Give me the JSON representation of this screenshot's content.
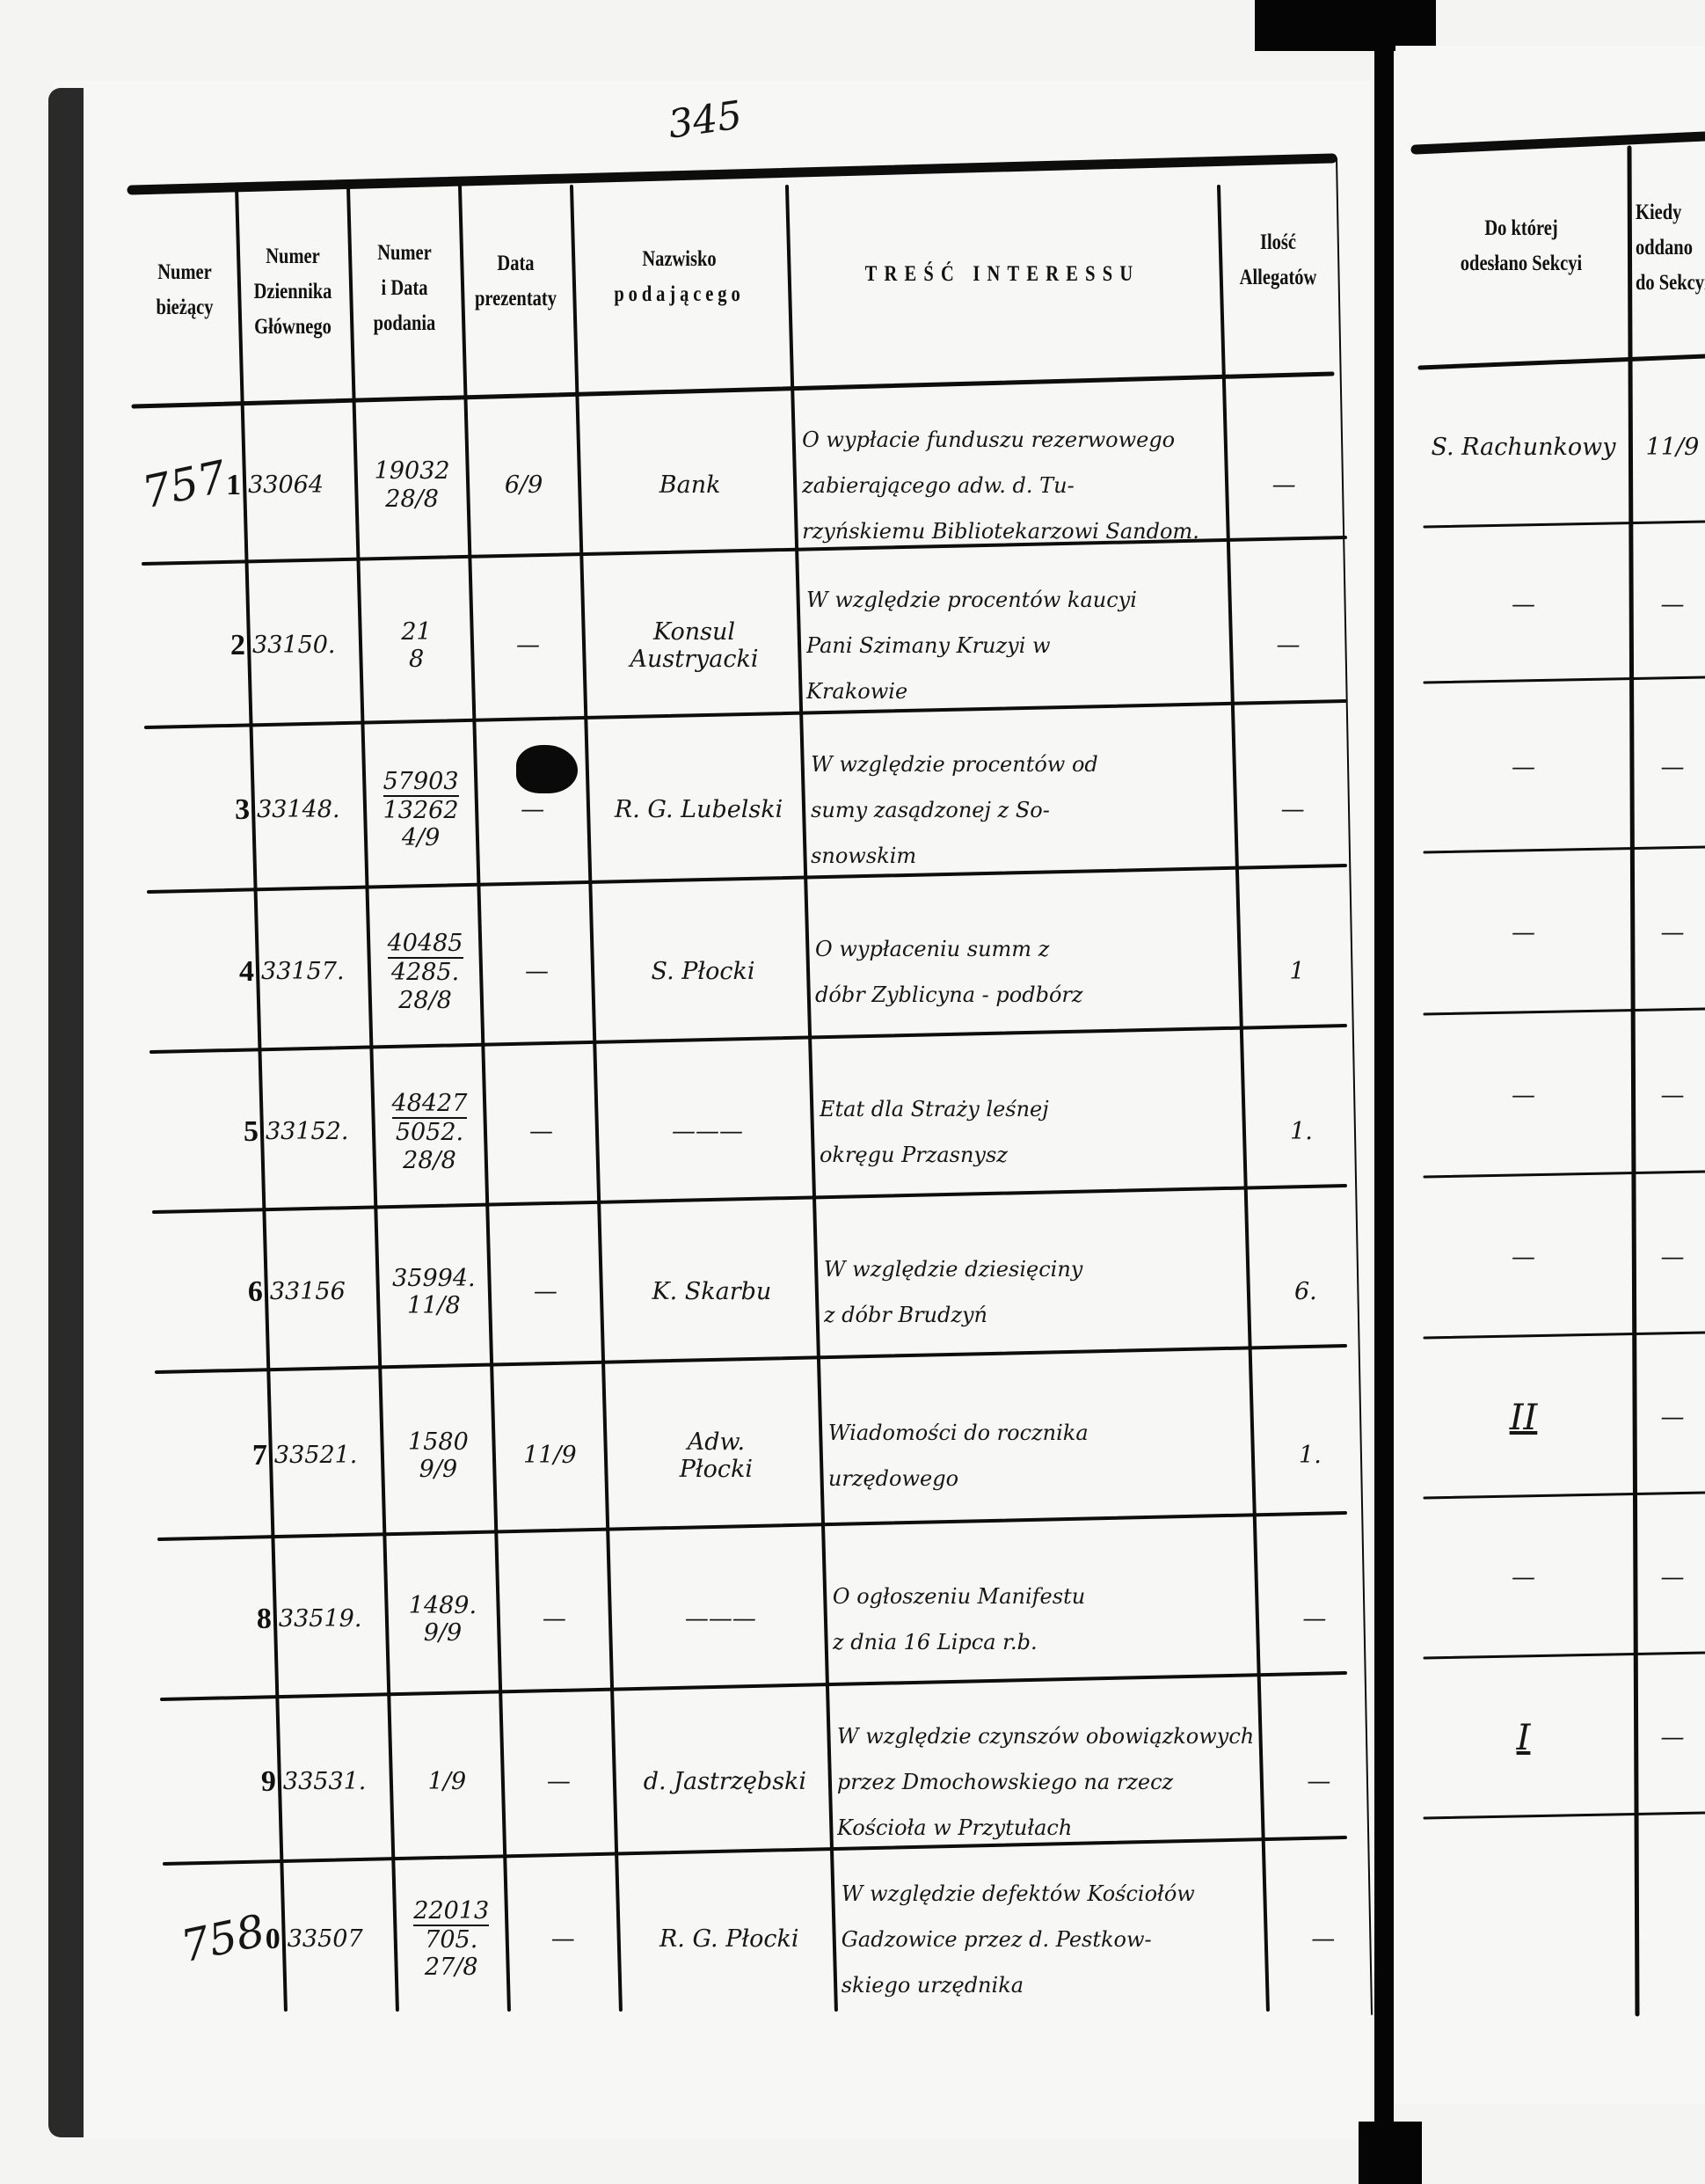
{
  "page_number": "345",
  "left_page": {
    "headers": {
      "numer_biezacy": [
        "Numer",
        "bieżący"
      ],
      "numer_dziennika": [
        "Numer",
        "Dziennika",
        "Głównego"
      ],
      "numer_i_data": [
        "Numer",
        "i Data",
        "podania"
      ],
      "data_prezentaty": [
        "Data",
        "prezentaty"
      ],
      "nazwisko": [
        "Nazwisko",
        "podającego"
      ],
      "tresc": [
        "TREŚĆ INTERESSU"
      ],
      "ilosc": [
        "Ilość",
        "Allegatów"
      ]
    },
    "rows": [
      {
        "handwritten_prefix": "757",
        "num": "1",
        "dziennik": "33064",
        "numer_data": [
          "19032",
          "28/8"
        ],
        "prezentaty": "6/9",
        "nazwisko": [
          "Bank"
        ],
        "tresc": [
          "O wypłacie funduszu rezerwowego",
          "zabierającego adw. d. Tu-",
          "rzyńskiemu Bibliotekarzowi Sandom."
        ],
        "ilosc": "—"
      },
      {
        "handwritten_prefix": "",
        "num": "2",
        "dziennik": "33150.",
        "numer_data": [
          "21",
          "8"
        ],
        "prezentaty": "—",
        "nazwisko": [
          "Konsul",
          "Austryacki"
        ],
        "tresc": [
          "W względzie procentów kaucyi",
          "Pani Szimany Kruzyi w",
          "Krakowie"
        ],
        "ilosc": "—"
      },
      {
        "handwritten_prefix": "",
        "num": "3",
        "dziennik": "33148.",
        "numer_data": [
          "57903",
          "13262",
          "4/9"
        ],
        "prezentaty": "—",
        "nazwisko": [
          "R. G. Lubelski"
        ],
        "tresc": [
          "W względzie procentów od",
          "sumy zasądzonej z So-",
          "snowskim"
        ],
        "ilosc": "—"
      },
      {
        "handwritten_prefix": "",
        "num": "4",
        "dziennik": "33157.",
        "numer_data": [
          "40485",
          "4285.",
          "28/8"
        ],
        "prezentaty": "—",
        "nazwisko": [
          "S. Płocki"
        ],
        "tresc": [
          "O wypłaceniu summ z",
          "dóbr Zyblicyna - podbórz"
        ],
        "ilosc": "1"
      },
      {
        "handwritten_prefix": "",
        "num": "5",
        "dziennik": "33152.",
        "numer_data": [
          "48427",
          "5052.",
          "28/8"
        ],
        "prezentaty": "—",
        "nazwisko": [
          "———"
        ],
        "tresc": [
          "Etat dla Straży leśnej",
          "okręgu Przasnysz"
        ],
        "ilosc": "1."
      },
      {
        "handwritten_prefix": "",
        "num": "6",
        "dziennik": "33156",
        "numer_data": [
          "35994.",
          "11/8"
        ],
        "prezentaty": "—",
        "nazwisko": [
          "K. Skarbu"
        ],
        "tresc": [
          "W względzie dziesięciny",
          "z dóbr Brudzyń"
        ],
        "ilosc": "6."
      },
      {
        "handwritten_prefix": "",
        "num": "7",
        "dziennik": "33521.",
        "numer_data": [
          "1580",
          "9/9"
        ],
        "prezentaty": "11/9",
        "nazwisko": [
          "Adw.",
          "Płocki"
        ],
        "tresc": [
          "Wiadomości do rocznika",
          "urzędowego"
        ],
        "ilosc": "1."
      },
      {
        "handwritten_prefix": "",
        "num": "8",
        "dziennik": "33519.",
        "numer_data": [
          "1489.",
          "9/9"
        ],
        "prezentaty": "—",
        "nazwisko": [
          "———"
        ],
        "tresc": [
          "O ogłoszeniu Manifestu",
          "z dnia 16 Lipca r.b."
        ],
        "ilosc": "—"
      },
      {
        "handwritten_prefix": "",
        "num": "9",
        "dziennik": "33531.",
        "numer_data": [
          "1/9"
        ],
        "prezentaty": "—",
        "nazwisko": [
          "d. Jastrzębski"
        ],
        "tresc": [
          "W względzie czynszów obowiązkowych",
          "przez Dmochowskiego na rzecz",
          "Kościoła w Przytułach"
        ],
        "ilosc": "—"
      },
      {
        "handwritten_prefix": "758",
        "num": "0",
        "dziennik": "33507",
        "numer_data": [
          "22013",
          "705.",
          "27/8"
        ],
        "prezentaty": "—",
        "nazwisko": [
          "R. G. Płocki"
        ],
        "tresc": [
          "W względzie defektów Kościołów",
          "Gadzowice przez d. Pestkow-",
          "skiego urzędnika"
        ],
        "ilosc": "—"
      }
    ]
  },
  "right_page": {
    "headers": {
      "sekcja": [
        "Do której",
        "odesłano Sekcyi"
      ],
      "kiedy": [
        "Kiedy",
        "oddano",
        "do Sekcyi"
      ]
    },
    "rows": [
      {
        "sekcja": "S. Rachunkowy",
        "kiedy": "11/9"
      },
      {
        "sekcja": "—",
        "kiedy": "—"
      },
      {
        "sekcja": "—",
        "kiedy": "—"
      },
      {
        "sekcja": "—",
        "kiedy": "—"
      },
      {
        "sekcja": "—",
        "kiedy": "—"
      },
      {
        "sekcja": "—",
        "kiedy": "—"
      },
      {
        "sekcja": "II",
        "kiedy": "—"
      },
      {
        "sekcja": "—",
        "kiedy": "—"
      },
      {
        "sekcja": "I",
        "kiedy": "—"
      }
    ]
  }
}
